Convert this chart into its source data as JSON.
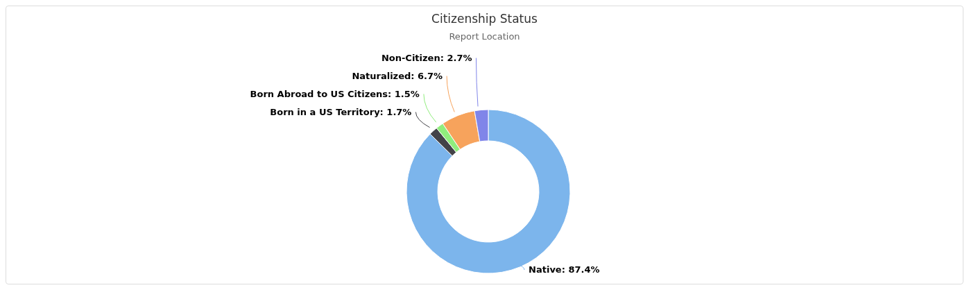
{
  "chart_data": {
    "type": "donut",
    "title": "Citizenship Status",
    "subtitle": "Report Location",
    "categories": [
      "Native",
      "Born in a US Territory",
      "Born Abroad to US Citizens",
      "Naturalized",
      "Non-Citizen"
    ],
    "values": [
      87.4,
      1.7,
      1.5,
      6.7,
      2.7
    ],
    "value_labels": [
      "87.4%",
      "1.7%",
      "1.5%",
      "6.7%",
      "2.7%"
    ],
    "colors": [
      "#7cb5ec",
      "#434348",
      "#90ed7d",
      "#f7a35c",
      "#8085e9"
    ]
  }
}
